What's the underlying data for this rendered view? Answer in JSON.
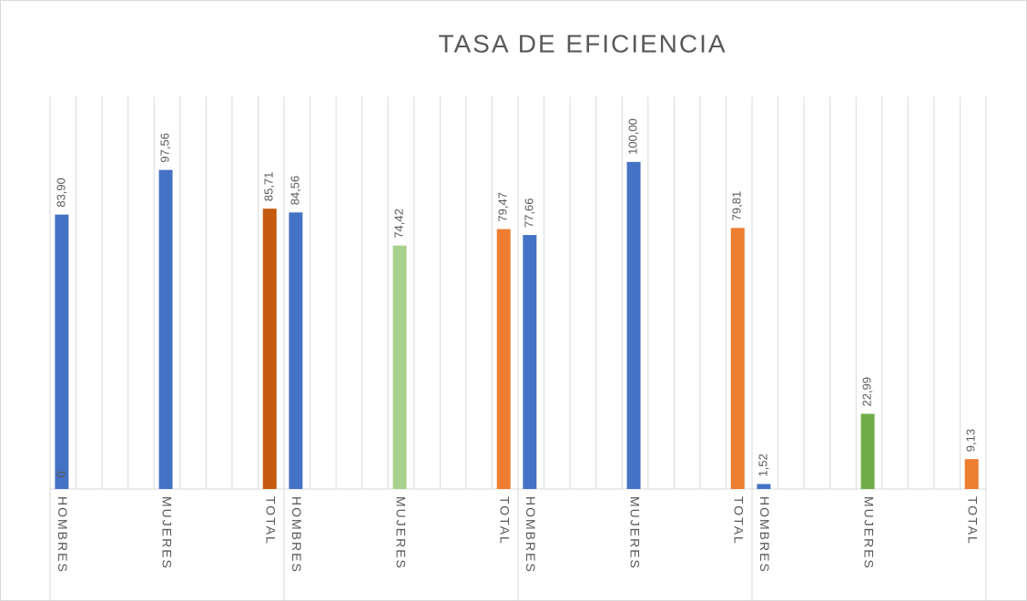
{
  "chart_data": {
    "type": "bar",
    "title": "TASA DE EFICIENCIA",
    "categories": [
      "HOMBRES",
      "MUJERES",
      "TOTAL",
      "HOMBRES",
      "MUJERES",
      "TOTAL",
      "HOMBRES",
      "MUJERES",
      "TOTAL",
      "HOMBRES",
      "MUJERES",
      "TOTAL"
    ],
    "values": [
      83.9,
      97.56,
      85.71,
      84.56,
      74.42,
      79.47,
      77.66,
      100.0,
      79.81,
      1.52,
      22.99,
      9.13
    ],
    "value_labels": [
      "83,90",
      "97,56",
      "85,71",
      "84,56",
      "74,42",
      "79,47",
      "77,66",
      "100,00",
      "79,81",
      "1,52",
      "22,99",
      "9,13"
    ],
    "colors": [
      "#4472c4",
      "#4472c4",
      "#c55a11",
      "#4472c4",
      "#a9d18e",
      "#ed7d31",
      "#4472c4",
      "#4472c4",
      "#ed7d31",
      "#4472c4",
      "#70ad47",
      "#ed7d31"
    ],
    "annotations": [
      {
        "text": "0"
      }
    ],
    "ylim": [
      0,
      120
    ]
  }
}
